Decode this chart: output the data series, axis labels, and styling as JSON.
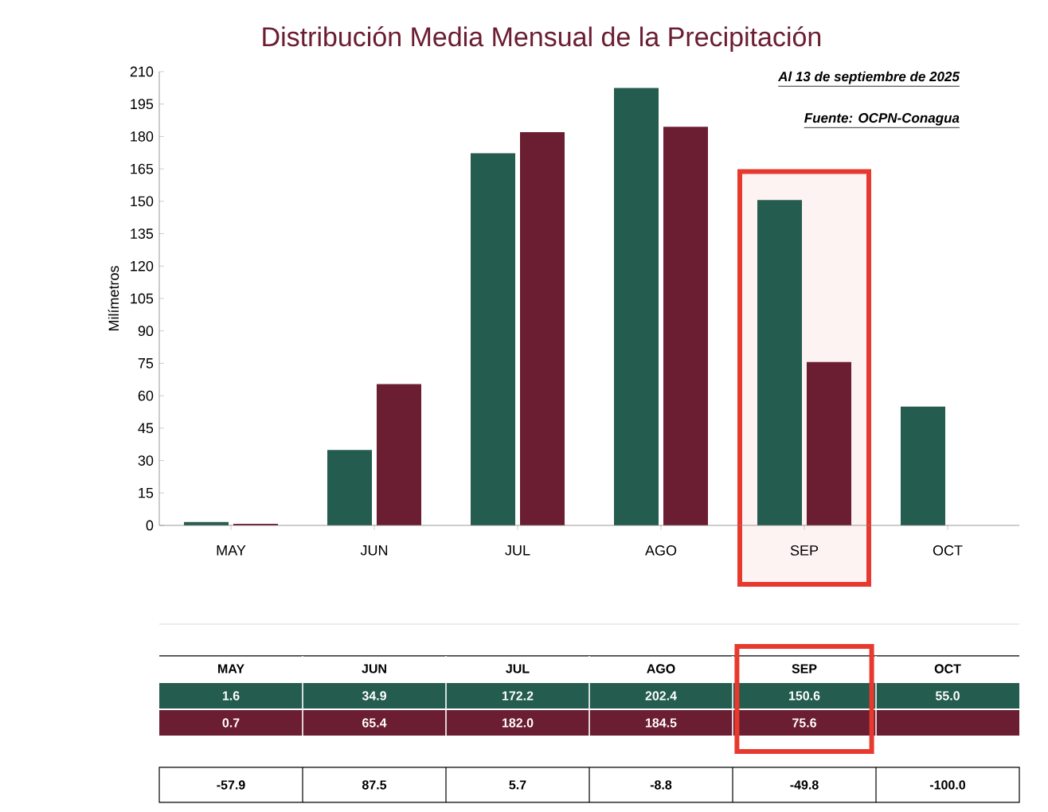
{
  "chart_data": {
    "type": "bar",
    "title": "Distribución Media Mensual de la Precipitación",
    "ylabel": "Milímetros",
    "categories": [
      "MAY",
      "JUN",
      "JUL",
      "AGO",
      "SEP",
      "OCT"
    ],
    "series": [
      {
        "color": "#245c4f",
        "values": [
          1.6,
          34.9,
          172.2,
          202.4,
          150.6,
          55.0
        ],
        "value_labels": [
          "1.6",
          "34.9",
          "172.2",
          "202.4",
          "150.6",
          "55.0"
        ]
      },
      {
        "color": "#6b1d31",
        "values": [
          0.7,
          65.4,
          182.0,
          184.5,
          75.6,
          null
        ],
        "value_labels": [
          "0.7",
          "65.4",
          "182.0",
          "184.5",
          "75.6",
          null
        ]
      }
    ],
    "ylim": [
      0,
      210
    ],
    "yticks": [
      0,
      15,
      30,
      45,
      60,
      75,
      90,
      105,
      120,
      135,
      150,
      165,
      180,
      195,
      210
    ],
    "bands": [
      {
        "axis": "x",
        "from": "SEP",
        "to": "SEP",
        "color": "#e8392f"
      }
    ],
    "annotations": [
      "Al 13 de septiembre de 2025",
      "Fuente: OCPN-Conagua",
      "-57.9",
      "87.5",
      "5.7",
      "-8.8",
      "-49.8",
      "-100.0"
    ]
  }
}
